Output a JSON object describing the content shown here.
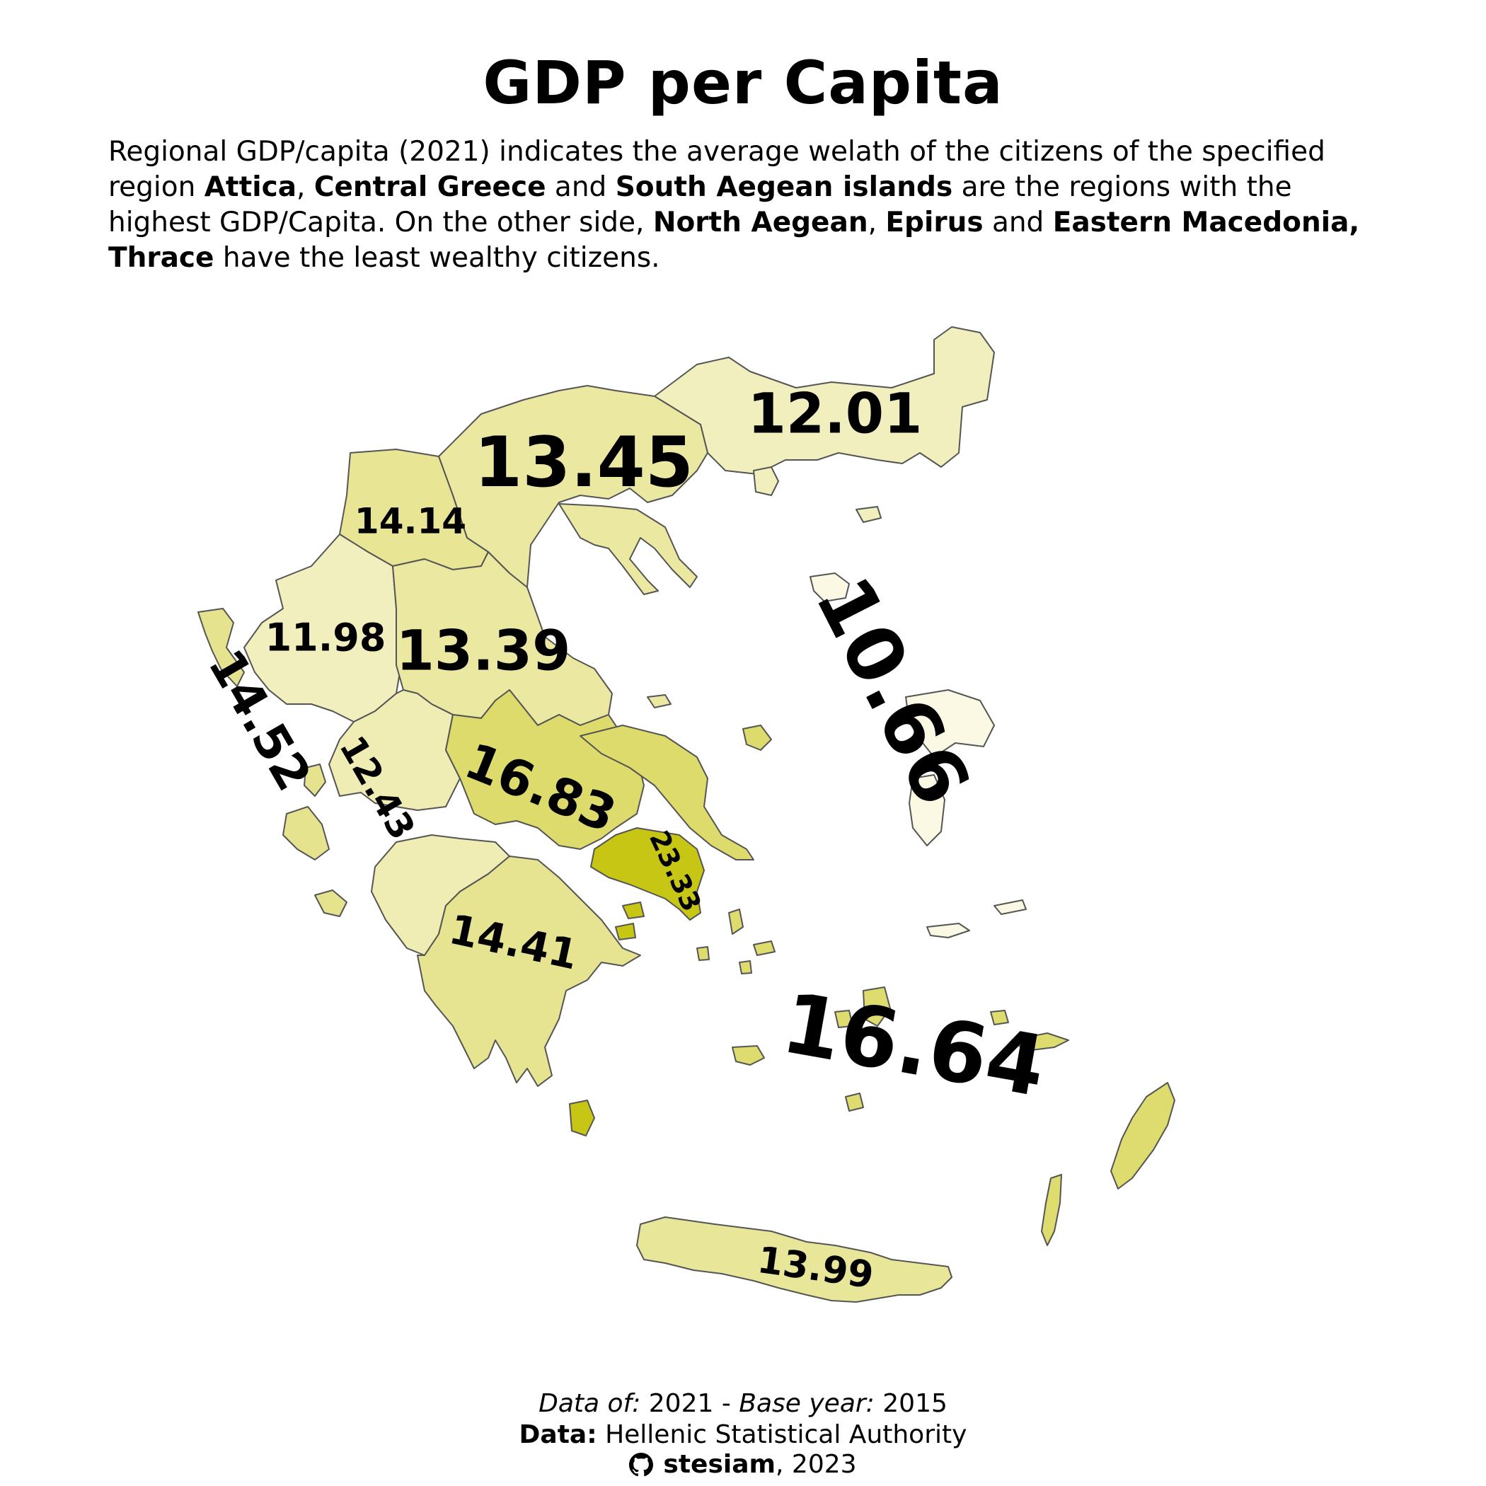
{
  "title": "GDP per Capita",
  "subtitle": {
    "part1": "Regional GDP/capita (2021) indicates the average welath of the citizens of the specified region ",
    "b1": "Attica",
    "sep1": ", ",
    "b2": "Central Greece",
    "and1": " and ",
    "b3": "South Aegean islands",
    "part2": " are the regions with the highest GDP/Capita. On the other side, ",
    "b4": "North Aegean",
    "sep2": ", ",
    "b5": "Epirus",
    "and2": " and ",
    "b6": "Eastern Macedonia, Thrace",
    "part3": " have the least wealthy citizens."
  },
  "colors": {
    "fill_low": "#fbf8e4",
    "fill_high": "#c8c614",
    "border": "#555555"
  },
  "regions": [
    {
      "key": "eastern-macedonia-thrace",
      "gdp": 12.01,
      "label": "12.01"
    },
    {
      "key": "central-macedonia",
      "gdp": 13.45,
      "label": "13.45"
    },
    {
      "key": "western-macedonia",
      "gdp": 14.14,
      "label": "14.14"
    },
    {
      "key": "epirus",
      "gdp": 11.98,
      "label": "11.98"
    },
    {
      "key": "thessaly",
      "gdp": 13.39,
      "label": "13.39"
    },
    {
      "key": "north-aegean",
      "gdp": 10.66,
      "label": "10.66"
    },
    {
      "key": "ionian-islands",
      "gdp": 14.52,
      "label": "14.52"
    },
    {
      "key": "western-greece",
      "gdp": 12.43,
      "label": "12.43"
    },
    {
      "key": "central-greece",
      "gdp": 16.83,
      "label": "16.83"
    },
    {
      "key": "attica",
      "gdp": 23.33,
      "label": "23.33"
    },
    {
      "key": "peloponnese",
      "gdp": 14.41,
      "label": "14.41"
    },
    {
      "key": "south-aegean",
      "gdp": 16.64,
      "label": "16.64"
    },
    {
      "key": "crete",
      "gdp": 13.99,
      "label": "13.99"
    }
  ],
  "caption": {
    "data_of_label": "Data of:",
    "data_of_value": " 2021 - ",
    "base_year_label": "Base year:",
    "base_year_value": " 2015",
    "source_label": "Data:",
    "source_value": " Hellenic Statistical Authority",
    "author": "stesiam",
    "year": ", 2023",
    "author_icon": "github-icon"
  }
}
